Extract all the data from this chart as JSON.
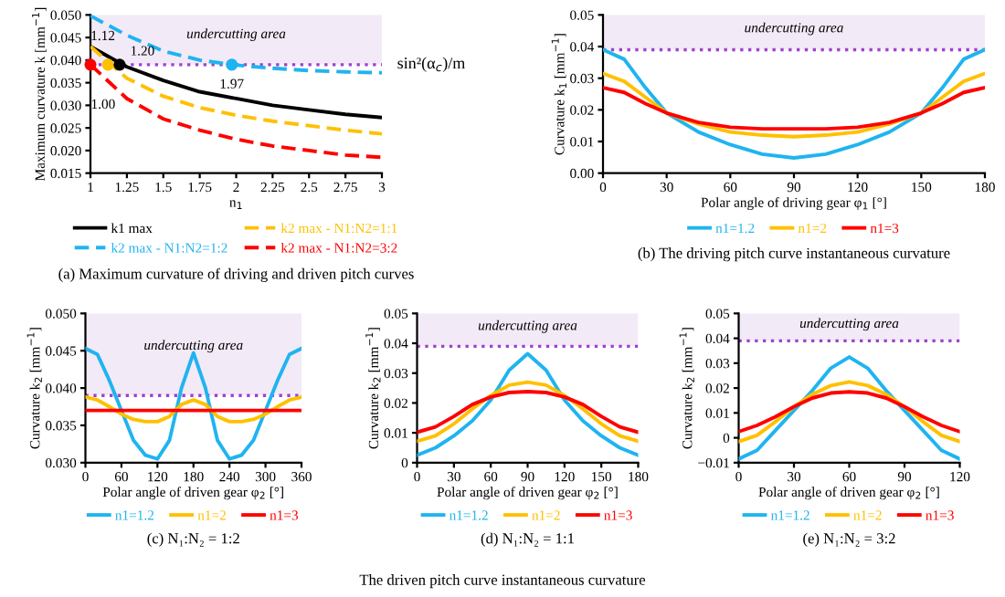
{
  "chart_data": [
    {
      "type": "line",
      "title": "(a) Maximum curvature of driving and driven pitch curves",
      "xlabel": "n$_{1}$",
      "ylabel": "Maximum curvature k [mm$^{−1}$]",
      "xlim": [
        1,
        3
      ],
      "xticks": [
        1,
        1.25,
        1.5,
        1.75,
        2,
        2.25,
        2.5,
        2.75,
        3
      ],
      "ylim": [
        0.015,
        0.05
      ],
      "yticks": [
        0.015,
        {
          "value": 0.02,
          "label": "0.020"
        },
        0.025,
        {
          "value": 0.03,
          "label": "0.030"
        },
        0.035,
        {
          "value": 0.04,
          "label": "0.040"
        },
        0.045,
        {
          "value": 0.05,
          "label": "0.050"
        }
      ],
      "legend": "bottom",
      "grid": false,
      "x": [
        1,
        1.25,
        1.5,
        1.75,
        2,
        2.25,
        2.5,
        2.75,
        3
      ],
      "series": [
        {
          "name": "k1 max",
          "color": "#000000",
          "line_style": "solid",
          "values": [
            0.043,
            0.0385,
            0.0355,
            0.033,
            0.0315,
            0.03,
            0.029,
            0.028,
            0.0273
          ]
        },
        {
          "name": "k2 max - N1:N2=1:2",
          "color": "#1fb4f0",
          "line_style": "dashed",
          "values": [
            0.0498,
            0.0455,
            0.042,
            0.04,
            0.0389,
            0.0382,
            0.0377,
            0.0374,
            0.0372
          ]
        },
        {
          "name": "k2 max - N1:N2=1:1",
          "color": "#ffc000",
          "line_style": "dashed",
          "values": [
            0.043,
            0.036,
            0.032,
            0.0295,
            0.0278,
            0.0265,
            0.0255,
            0.0245,
            0.0237
          ]
        },
        {
          "name": "k2 max - N1:N2=3:2",
          "color": "#ff0000",
          "line_style": "dashed",
          "values": [
            0.039,
            0.0315,
            0.027,
            0.0245,
            0.0225,
            0.021,
            0.02,
            0.019,
            0.0185
          ]
        },
        {
          "type": "scatter",
          "marker": "circle",
          "x": [
            1,
            1.12,
            1.2,
            1.97
          ],
          "values": [
            0.039,
            0.039,
            0.039,
            0.039
          ],
          "colors": [
            "#ff0000",
            "#ffc000",
            "#000000",
            "#1fb4f0"
          ]
        }
      ],
      "ref_lines": [
        {
          "axis": "y",
          "value": 0.039,
          "label": "sin²(α$_{c}$)/m",
          "color": "#a040d0",
          "line_style": "dotted"
        }
      ],
      "bands": [
        {
          "axis": "y",
          "from": 0.039,
          "to": 0.05,
          "label": "undercutting area",
          "color": "#f3eaf7"
        }
      ],
      "annotations": [
        {
          "text": "1.12",
          "x": 1.12,
          "y": 0.039
        },
        {
          "text": "1.20",
          "x": 1.2,
          "y": 0.039
        },
        {
          "text": "1.97",
          "x": 1.97,
          "y": 0.039
        },
        {
          "text": "1.00",
          "x": 1,
          "y": 0.039
        }
      ]
    },
    {
      "type": "line",
      "title": "(b) The driving pitch curve instantaneous curvature",
      "xlabel": "Polar angle of driving gear φ$_{1}$ [°]",
      "ylabel": "Curvature k$_{1}$ [mm$^{−1}$]",
      "xlim": [
        0,
        180
      ],
      "xticks": [
        0,
        30,
        60,
        90,
        120,
        150,
        180
      ],
      "ylim": [
        0,
        0.05
      ],
      "yticks": [
        {
          "value": 0,
          "label": "0.00"
        },
        0.01,
        0.02,
        0.03,
        0.04,
        0.05
      ],
      "legend": "bottom",
      "grid": false,
      "marker": "none",
      "x": [
        0,
        10,
        20,
        30,
        45,
        60,
        75,
        90,
        105,
        120,
        135,
        150,
        160,
        170,
        180
      ],
      "series": [
        {
          "name": "n1=1.2",
          "color": "#1fb4f0",
          "values": [
            0.039,
            0.036,
            0.027,
            0.019,
            0.013,
            0.009,
            0.006,
            0.0048,
            0.006,
            0.009,
            0.013,
            0.019,
            0.027,
            0.036,
            0.039
          ]
        },
        {
          "name": "n1=2",
          "color": "#ffc000",
          "values": [
            0.0315,
            0.029,
            0.024,
            0.019,
            0.0155,
            0.013,
            0.012,
            0.0115,
            0.012,
            0.013,
            0.0155,
            0.019,
            0.024,
            0.029,
            0.0315
          ]
        },
        {
          "name": "n1=3",
          "color": "#ff0000",
          "values": [
            0.027,
            0.0255,
            0.022,
            0.019,
            0.016,
            0.0145,
            0.014,
            0.014,
            0.014,
            0.0145,
            0.016,
            0.019,
            0.022,
            0.0255,
            0.027
          ]
        }
      ],
      "ref_lines": [
        {
          "axis": "y",
          "value": 0.039,
          "color": "#a040d0",
          "line_style": "dotted"
        }
      ],
      "bands": [
        {
          "axis": "y",
          "from": 0.039,
          "to": 0.05,
          "label": "undercutting area",
          "color": "#f3eaf7"
        }
      ]
    },
    {
      "type": "line",
      "title": "(c) N₁:N₂ = 1:2",
      "xlabel": "Polar angle of driven gear φ$_{2}$ [°]",
      "ylabel": "Curvature k$_{2}$ [mm$^{−1}$]",
      "xlim": [
        0,
        360
      ],
      "xticks": [
        0,
        60,
        120,
        180,
        240,
        300,
        360
      ],
      "ylim": [
        0.03,
        0.05
      ],
      "yticks": [
        {
          "value": 0.03,
          "label": "0.030"
        },
        0.035,
        {
          "value": 0.04,
          "label": "0.040"
        },
        0.045,
        {
          "value": 0.05,
          "label": "0.050"
        }
      ],
      "legend": "bottom",
      "grid": false,
      "marker": "none",
      "x": [
        0,
        20,
        40,
        60,
        80,
        100,
        120,
        140,
        160,
        180,
        200,
        220,
        240,
        260,
        280,
        300,
        320,
        340,
        360
      ],
      "series": [
        {
          "name": "n1=1.2",
          "color": "#1fb4f0",
          "values": [
            0.0453,
            0.0445,
            0.041,
            0.037,
            0.033,
            0.031,
            0.0305,
            0.033,
            0.04,
            0.0447,
            0.04,
            0.033,
            0.0305,
            0.031,
            0.033,
            0.037,
            0.041,
            0.0445,
            0.0453
          ]
        },
        {
          "name": "n1=2",
          "color": "#ffc000",
          "values": [
            0.0388,
            0.0384,
            0.0375,
            0.0365,
            0.0358,
            0.0355,
            0.0355,
            0.0362,
            0.0378,
            0.0384,
            0.0378,
            0.0362,
            0.0355,
            0.0355,
            0.0358,
            0.0365,
            0.0375,
            0.0384,
            0.0388
          ]
        },
        {
          "name": "n1=3",
          "color": "#ff0000",
          "values": [
            0.037,
            0.037,
            0.037,
            0.037,
            0.037,
            0.037,
            0.037,
            0.037,
            0.037,
            0.037,
            0.037,
            0.037,
            0.037,
            0.037,
            0.037,
            0.037,
            0.037,
            0.037,
            0.037
          ]
        }
      ],
      "ref_lines": [
        {
          "axis": "y",
          "value": 0.039,
          "color": "#a040d0",
          "line_style": "dotted"
        }
      ],
      "bands": [
        {
          "axis": "y",
          "from": 0.039,
          "to": 0.05,
          "label": "undercutting area",
          "color": "#f3eaf7"
        }
      ]
    },
    {
      "type": "line",
      "title": "(d) N₁:N₂ = 1:1",
      "xlabel": "Polar angle of driven gear φ$_{2}$ [°]",
      "ylabel": "Curvature k$_{2}$ [mm$^{−1}$]",
      "xlim": [
        0,
        180
      ],
      "xticks": [
        0,
        30,
        60,
        90,
        120,
        150,
        180
      ],
      "ylim": [
        0,
        0.05
      ],
      "yticks": [
        0,
        0.01,
        0.02,
        0.03,
        0.04,
        0.05
      ],
      "legend": "bottom",
      "grid": false,
      "marker": "none",
      "x": [
        0,
        15,
        30,
        45,
        60,
        75,
        90,
        105,
        120,
        135,
        150,
        165,
        180
      ],
      "series": [
        {
          "name": "n1=1.2",
          "color": "#1fb4f0",
          "values": [
            0.0025,
            0.005,
            0.009,
            0.014,
            0.021,
            0.031,
            0.0365,
            0.031,
            0.021,
            0.014,
            0.009,
            0.005,
            0.0025
          ]
        },
        {
          "name": "n1=2",
          "color": "#ffc000",
          "values": [
            0.0072,
            0.009,
            0.013,
            0.018,
            0.0225,
            0.026,
            0.027,
            0.026,
            0.0225,
            0.018,
            0.013,
            0.009,
            0.0072
          ]
        },
        {
          "name": "n1=3",
          "color": "#ff0000",
          "values": [
            0.0102,
            0.012,
            0.0155,
            0.0195,
            0.022,
            0.0235,
            0.0238,
            0.0235,
            0.022,
            0.0195,
            0.0155,
            0.012,
            0.0102
          ]
        }
      ],
      "ref_lines": [
        {
          "axis": "y",
          "value": 0.039,
          "color": "#a040d0",
          "line_style": "dotted"
        }
      ],
      "bands": [
        {
          "axis": "y",
          "from": 0.039,
          "to": 0.05,
          "label": "undercutting area",
          "color": "#f3eaf7"
        }
      ],
      "annotations": [
        "The driven pitch curve instantaneous curvature"
      ]
    },
    {
      "type": "line",
      "title": "(e) N₁:N₂ = 3:2",
      "xlabel": "Polar angle of driven gear φ$_{2}$ [°]",
      "ylabel": "Curvature k$_{2}$ [mm$^{−1}$]",
      "xlim": [
        0,
        120
      ],
      "xticks": [
        0,
        30,
        60,
        90,
        120
      ],
      "ylim": [
        -0.01,
        0.05
      ],
      "yticks": [
        {
          "value": -0.01,
          "label": "−0.01"
        },
        0,
        0.01,
        0.02,
        0.03,
        0.04,
        0.05
      ],
      "legend": "bottom",
      "grid": false,
      "marker": "none",
      "x": [
        0,
        10,
        20,
        30,
        40,
        50,
        60,
        70,
        80,
        90,
        100,
        110,
        120
      ],
      "series": [
        {
          "name": "n1=1.2",
          "color": "#1fb4f0",
          "values": [
            -0.0085,
            -0.005,
            0.003,
            0.011,
            0.019,
            0.028,
            0.0325,
            0.028,
            0.019,
            0.011,
            0.003,
            -0.005,
            -0.0085
          ]
        },
        {
          "name": "n1=2",
          "color": "#ffc000",
          "values": [
            -0.0015,
            0.001,
            0.0065,
            0.0125,
            0.0175,
            0.021,
            0.0225,
            0.021,
            0.0175,
            0.0125,
            0.0065,
            0.001,
            -0.0015
          ]
        },
        {
          "name": "n1=3",
          "color": "#ff0000",
          "values": [
            0.0025,
            0.005,
            0.0085,
            0.0125,
            0.016,
            0.018,
            0.0185,
            0.018,
            0.016,
            0.0125,
            0.0085,
            0.005,
            0.0025
          ]
        }
      ],
      "ref_lines": [
        {
          "axis": "y",
          "value": 0.039,
          "color": "#a040d0",
          "line_style": "dotted"
        }
      ],
      "bands": [
        {
          "axis": "y",
          "from": 0.039,
          "to": 0.05,
          "label": "undercutting area",
          "color": "#f3eaf7"
        }
      ]
    }
  ]
}
